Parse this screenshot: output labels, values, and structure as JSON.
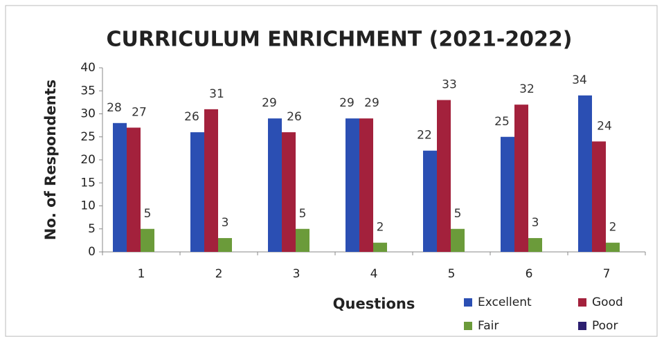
{
  "chart_data": {
    "type": "bar",
    "title": "CURRICULUM ENRICHMENT (2021-2022)",
    "y_label": "No. of Respondents",
    "x_label": "Questions",
    "categories": [
      "1",
      "2",
      "3",
      "4",
      "5",
      "6",
      "7"
    ],
    "series": [
      {
        "name": "Excellent",
        "color": "#2b4fb3",
        "values": [
          28,
          26,
          29,
          29,
          22,
          25,
          34
        ]
      },
      {
        "name": "Good",
        "color": "#a3213c",
        "values": [
          27,
          31,
          26,
          29,
          33,
          32,
          24
        ]
      },
      {
        "name": "Fair",
        "color": "#6b9b3a",
        "values": [
          5,
          3,
          5,
          2,
          5,
          3,
          2
        ]
      },
      {
        "name": "Poor",
        "color": "#2c1f70",
        "values": [
          null,
          null,
          null,
          null,
          null,
          null,
          null
        ]
      }
    ],
    "ylim": [
      0,
      40
    ],
    "yticks": [
      0,
      5,
      10,
      15,
      20,
      25,
      30,
      35,
      40
    ],
    "grid": false
  }
}
